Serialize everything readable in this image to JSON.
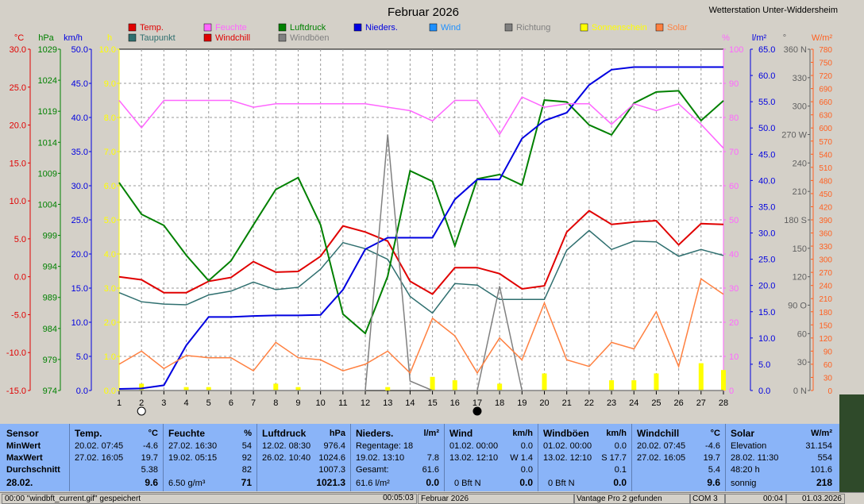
{
  "title": "Februar 2026",
  "station": "Wetterstation Unter-Widdersheim",
  "legend": [
    {
      "label": "Temp.",
      "color": "#e00000"
    },
    {
      "label": "Feuchte",
      "color": "#ff66ff"
    },
    {
      "label": "Luftdruck",
      "color": "#008000"
    },
    {
      "label": "Nieders.",
      "color": "#0000e0"
    },
    {
      "label": "Wind",
      "color": "#1e90ff"
    },
    {
      "label": "Richtung",
      "color": "#808080"
    },
    {
      "label": "Sonnenschein",
      "color": "#ffff00"
    },
    {
      "label": "Solar",
      "color": "#ff8040"
    },
    {
      "label": "Taupunkt",
      "color": "#2f6f6f"
    },
    {
      "label": "Windchill",
      "color": "#e00000"
    },
    {
      "label": "Windböen",
      "color": "#808080"
    }
  ],
  "axis_units": {
    "temp": "°C",
    "hpa": "hPa",
    "kmh": "km/h",
    "h": "h",
    "pct": "%",
    "lm2": "l/m²",
    "deg": "°",
    "wm2": "W/m²"
  },
  "chart_data": {
    "type": "line",
    "x": [
      1,
      2,
      3,
      4,
      5,
      6,
      7,
      8,
      9,
      10,
      11,
      12,
      13,
      14,
      15,
      16,
      17,
      18,
      19,
      20,
      21,
      22,
      23,
      24,
      25,
      26,
      27,
      28
    ],
    "axes": {
      "temp": {
        "ticks": [
          "30.0",
          "25.0",
          "20.0",
          "15.0",
          "10.0",
          "5.0",
          "0.0",
          "-5.0",
          "-10.0",
          "-15.0"
        ],
        "color": "#e00000"
      },
      "hpa": {
        "ticks": [
          "1029",
          "1024",
          "1019",
          "1014",
          "1009",
          "1004",
          "999",
          "994",
          "989",
          "984",
          "979",
          "974"
        ],
        "color": "#008000"
      },
      "kmh": {
        "ticks": [
          "50.0",
          "45.0",
          "40.0",
          "35.0",
          "30.0",
          "25.0",
          "20.0",
          "15.0",
          "10.0",
          "5.0",
          "0.0"
        ],
        "color": "#0000e0"
      },
      "h": {
        "ticks": [
          "10.0",
          "9.0",
          "8.0",
          "7.0",
          "6.0",
          "5.0",
          "4.0",
          "3.0",
          "2.0",
          "1.0",
          "0.0"
        ],
        "color": "#ffff00"
      },
      "pct": {
        "ticks": [
          "100",
          "90",
          "80",
          "70",
          "60",
          "50",
          "40",
          "30",
          "20",
          "10",
          "0"
        ],
        "color": "#ff66ff"
      },
      "lm2": {
        "ticks": [
          "65.0",
          "60.0",
          "55.0",
          "50.0",
          "45.0",
          "40.0",
          "35.0",
          "30.0",
          "25.0",
          "20.0",
          "15.0",
          "10.0",
          "5.0",
          "0.0"
        ],
        "color": "#0000e0"
      },
      "deg": {
        "ticks": [
          "360 N",
          "330",
          "300",
          "270 W",
          "240",
          "210",
          "180 S",
          "150",
          "120",
          "90 O",
          "60",
          "30",
          "0 N"
        ],
        "color": "#606060"
      },
      "wm2": {
        "ticks": [
          "780",
          "750",
          "720",
          "690",
          "660",
          "630",
          "600",
          "570",
          "540",
          "510",
          "480",
          "450",
          "420",
          "390",
          "360",
          "330",
          "300",
          "270",
          "240",
          "210",
          "180",
          "150",
          "120",
          "90",
          "60",
          "30",
          "0"
        ],
        "color": "#ff6020"
      }
    },
    "series": [
      {
        "name": "Temp.",
        "axis": "temp",
        "range": [
          -15,
          30
        ],
        "color": "#e00000",
        "values": [
          0,
          -0.4,
          -2.1,
          -2.1,
          -0.6,
          -0.1,
          2.0,
          0.6,
          0.7,
          2.7,
          6.7,
          5.9,
          4.7,
          -0.6,
          -2.3,
          1.2,
          1.2,
          0.4,
          -1.6,
          -1.2,
          5.9,
          8.7,
          6.9,
          7.2,
          7.4,
          4.2,
          7.0,
          6.9
        ]
      },
      {
        "name": "Taupunkt",
        "axis": "temp",
        "range": [
          -15,
          30
        ],
        "color": "#2f6f6f",
        "values": [
          -2.1,
          -3.3,
          -3.6,
          -3.7,
          -2.4,
          -1.9,
          -0.7,
          -1.7,
          -1.4,
          1.0,
          4.5,
          3.7,
          2.3,
          -2.6,
          -4.8,
          -0.9,
          -1.1,
          -3.0,
          -3.0,
          -3.0,
          3.5,
          6.1,
          3.6,
          4.7,
          4.6,
          2.7,
          3.6,
          2.8
        ]
      },
      {
        "name": "Luftdruck",
        "axis": "hpa",
        "range": [
          974,
          1029
        ],
        "color": "#008000",
        "values": [
          1007.5,
          1002.4,
          1000.6,
          995.8,
          991.7,
          994.9,
          1000.7,
          1006.4,
          1008.3,
          1000.7,
          986.3,
          983.2,
          992.4,
          1009.4,
          1007.7,
          997.3,
          1008.1,
          1008.8,
          1007.1,
          1020.8,
          1020.5,
          1016.8,
          1015.2,
          1020.3,
          1022.1,
          1022.3,
          1017.5,
          1020.7
        ]
      },
      {
        "name": "Nieders.",
        "axis": "lm2",
        "range": [
          0,
          65
        ],
        "color": "#0000e0",
        "values": [
          0.3,
          0.4,
          1.0,
          8.6,
          14.0,
          14.0,
          14.2,
          14.3,
          14.3,
          14.4,
          19.2,
          26.9,
          29.1,
          29.1,
          29.1,
          36.4,
          40.2,
          40.2,
          48.0,
          51.4,
          52.9,
          58.2,
          61.1,
          61.6,
          61.6,
          61.6,
          61.6,
          61.6
        ]
      },
      {
        "name": "Feuchte",
        "axis": "pct",
        "range": [
          0,
          100
        ],
        "color": "#ff66ff",
        "values": [
          85,
          77,
          85,
          85,
          85,
          85,
          83,
          84,
          84,
          84,
          84,
          84,
          83,
          82,
          79,
          85,
          85,
          75,
          86,
          83,
          84,
          84,
          78,
          84,
          82,
          84,
          78,
          71
        ]
      },
      {
        "name": "Richtung",
        "axis": "deg",
        "range": [
          0,
          360
        ],
        "color": "#808080",
        "values": [
          0,
          0,
          0,
          0,
          0,
          0,
          0,
          0,
          0,
          0,
          0,
          0,
          270,
          10,
          0,
          0,
          0,
          0,
          0,
          0,
          0,
          0,
          0,
          0,
          0,
          0,
          0,
          0
        ]
      },
      {
        "name": "Richtung2",
        "axis": "deg",
        "range": [
          0,
          360
        ],
        "color": "#808080",
        "values": [
          null,
          null,
          null,
          null,
          null,
          null,
          null,
          null,
          null,
          null,
          null,
          null,
          null,
          null,
          null,
          null,
          0,
          110,
          0,
          null,
          null,
          null,
          null,
          null,
          null,
          null,
          null,
          null
        ]
      },
      {
        "name": "Solar",
        "axis": "wm2",
        "range": [
          0,
          780
        ],
        "color": "#ff8040",
        "values": [
          60,
          90,
          50,
          80,
          75,
          75,
          45,
          110,
          75,
          70,
          45,
          60,
          90,
          40,
          165,
          125,
          40,
          120,
          70,
          200,
          70,
          55,
          110,
          95,
          180,
          55,
          255,
          220
        ]
      }
    ],
    "sunshine": {
      "name": "Sonnenschein",
      "axis": "h",
      "range": [
        0,
        10
      ],
      "values": [
        0,
        0.2,
        0,
        0.1,
        0.1,
        0,
        0,
        0.2,
        0.1,
        0,
        0,
        0,
        0.1,
        0,
        0.4,
        0.3,
        0,
        0.2,
        0,
        0.5,
        0,
        0,
        0.3,
        0.3,
        0.5,
        0,
        0.8,
        0.6
      ]
    }
  },
  "table": {
    "col1": {
      "h": "Sensor",
      "r1": "MinWert",
      "r2": "MaxWert",
      "r3": "Durchschnitt",
      "r4": "28.02."
    },
    "temp": {
      "h": "Temp.",
      "u": "°C",
      "r1a": "20.02.  07:45",
      "r1b": "-4.6",
      "r2a": "27.02.  16:05",
      "r2b": "19.7",
      "r3": "5.38",
      "r4": "9.6"
    },
    "feuchte": {
      "h": "Feuchte",
      "u": "%",
      "r1a": "27.02.  16:30",
      "r1b": "54",
      "r2a": "19.02.  05:15",
      "r2b": "92",
      "r3": "82",
      "r4a": "6.50 g/m³",
      "r4b": "71"
    },
    "luft": {
      "h": "Luftdruck",
      "u": "hPa",
      "r1a": "12.02.  08:30",
      "r1b": "976.4",
      "r2a": "26.02.  10:40",
      "r2b": "1024.6",
      "r3": "1007.3",
      "r4": "1021.3"
    },
    "nied": {
      "h": "Nieders.",
      "u": "l/m²",
      "r1": "Regentage: 18",
      "r2a": "19.02.  13:10",
      "r2b": "7.8",
      "r3a": "Gesamt:",
      "r3b": "61.6",
      "r4a": "61.6 l/m²",
      "r4b": "0.0"
    },
    "wind": {
      "h": "Wind",
      "u": "km/h",
      "r1a": "01.02.  00:00",
      "r1b": "0.0",
      "r2a": "13.02.  12:10",
      "r2b": "W 1.4",
      "r3": "0.0",
      "r4a": "0 Bft N",
      "r4b": "0.0"
    },
    "boeen": {
      "h": "Windböen",
      "u": "km/h",
      "r1a": "01.02.  00:00",
      "r1b": "0.0",
      "r2a": "13.02.  12:10",
      "r2b": "S 17.7",
      "r3": "0.1",
      "r4a": "0 Bft N",
      "r4b": "0.0"
    },
    "chill": {
      "h": "Windchill",
      "u": "°C",
      "r1a": "20.02.  07:45",
      "r1b": "-4.6",
      "r2a": "27.02.  16:05",
      "r2b": "19.7",
      "r3": "5.4",
      "r4": "9.6"
    },
    "solar": {
      "h": "Solar",
      "u": "W/m²",
      "r1a": "Elevation",
      "r1b": "31.154",
      "r2a": "28.02.  11:30",
      "r2b": "554",
      "r3a": "48:20 h",
      "r3b": "101.6",
      "r4a": "sonnig",
      "r4b": "218"
    }
  },
  "status": {
    "s1": "00:00  \"windbft_current.gif\" gespeichert",
    "s2": "00:05:03",
    "s3": "Februar 2026",
    "s4": "Vantage Pro 2 gefunden",
    "s5": "COM 3",
    "s6": "00:04",
    "s7": "01.03.2026"
  }
}
